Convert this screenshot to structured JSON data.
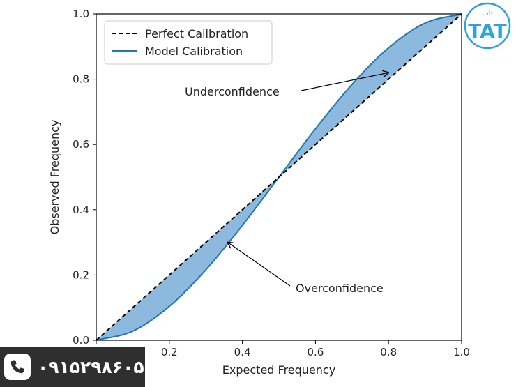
{
  "chart_data": {
    "type": "line",
    "title": "",
    "xlabel": "Expected Frequency",
    "ylabel": "Observed Frequency",
    "xlim": [
      0,
      1
    ],
    "ylim": [
      0,
      1
    ],
    "xticks": [
      "0.0",
      "0.2",
      "0.4",
      "0.6",
      "0.8",
      "1.0"
    ],
    "yticks": [
      "0.0",
      "0.2",
      "0.4",
      "0.6",
      "0.8",
      "1.0"
    ],
    "grid": false,
    "legend_position": "upper-left",
    "series": [
      {
        "name": "Perfect Calibration",
        "style": "dashed",
        "color": "#000000",
        "x": [
          0,
          1
        ],
        "y": [
          0,
          1
        ]
      },
      {
        "name": "Model Calibration",
        "style": "solid",
        "color": "#1f77b4",
        "x": [
          0,
          0.1,
          0.2,
          0.3,
          0.4,
          0.5,
          0.6,
          0.7,
          0.8,
          0.9,
          1.0
        ],
        "y": [
          0,
          0.028,
          0.104,
          0.216,
          0.352,
          0.5,
          0.648,
          0.784,
          0.896,
          0.972,
          1.0
        ]
      }
    ],
    "fill_between": {
      "color": "#7fb1d9",
      "between": [
        "Perfect Calibration",
        "Model Calibration"
      ]
    },
    "annotations": [
      {
        "text": "Underconfidence",
        "point": [
          0.8,
          0.82
        ]
      },
      {
        "text": "Overconfidence",
        "point": [
          0.36,
          0.3
        ]
      }
    ]
  },
  "contact": {
    "phone_number": "۰۹۱۵۲۹۸۶۰۵",
    "phone_icon": "phone-icon"
  },
  "logo": {
    "text": "تات",
    "mark": "TAT",
    "color": "#2ea3d8"
  }
}
